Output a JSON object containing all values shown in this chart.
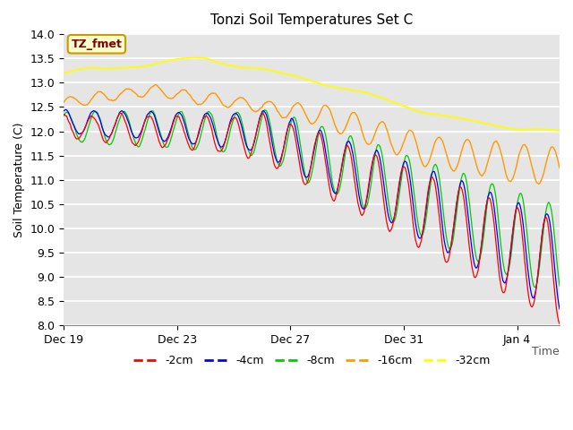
{
  "title": "Tonzi Soil Temperatures Set C",
  "ylabel": "Soil Temperature (C)",
  "ylim": [
    8.0,
    14.0
  ],
  "yticks": [
    8.0,
    8.5,
    9.0,
    9.5,
    10.0,
    10.5,
    11.0,
    11.5,
    12.0,
    12.5,
    13.0,
    13.5,
    14.0
  ],
  "xtick_labels": [
    "Dec 19",
    "Dec 23",
    "Dec 27",
    "Dec 31",
    "Jan 4"
  ],
  "xtick_positions": [
    0,
    4,
    8,
    12,
    16
  ],
  "xlim": [
    0,
    17.5
  ],
  "legend_labels": [
    "-2cm",
    "-4cm",
    "-8cm",
    "-16cm",
    "-32cm"
  ],
  "legend_colors": [
    "#ff0000",
    "#0000ff",
    "#00cc00",
    "#ff9900",
    "#ffff00"
  ],
  "annotation_text": "TZ_fmet",
  "annotation_bg": "#ffffcc",
  "annotation_border": "#cc9900",
  "plot_bg": "#e5e5e5",
  "n_points": 500,
  "end_day": 17.5
}
